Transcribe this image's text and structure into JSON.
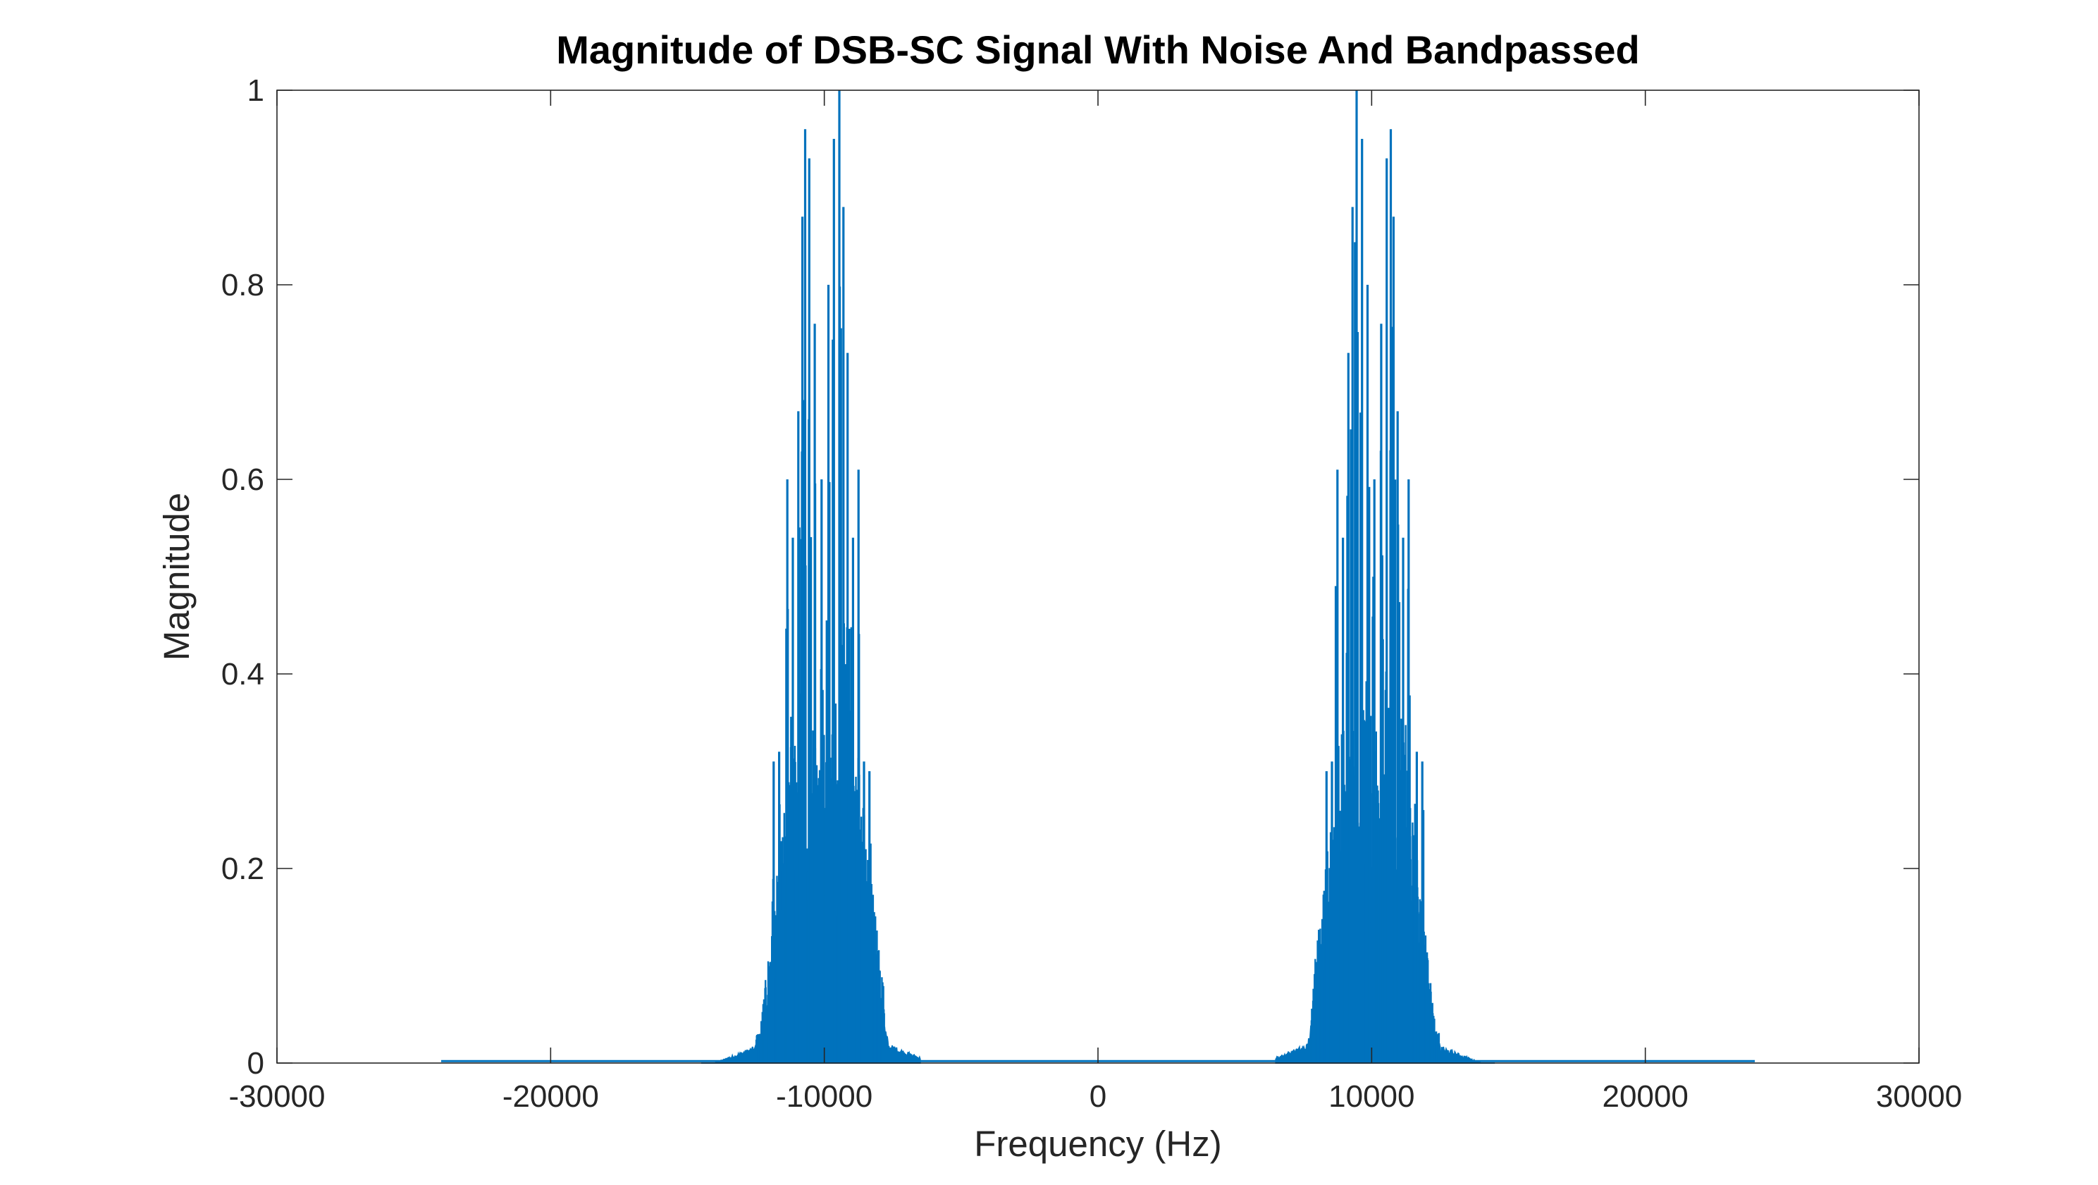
{
  "chart_data": {
    "type": "line",
    "title": "Magnitude of DSB-SC Signal With Noise And Bandpassed",
    "xlabel": "Frequency (Hz)",
    "ylabel": "Magnitude",
    "xlim": [
      -30000,
      30000
    ],
    "ylim": [
      0,
      1
    ],
    "xticks": [
      -30000,
      -20000,
      -10000,
      0,
      10000,
      20000,
      30000
    ],
    "yticks": [
      0,
      0.2,
      0.4,
      0.6,
      0.8,
      1
    ],
    "xtick_labels": [
      "-30000",
      "-20000",
      "-10000",
      "0",
      "10000",
      "20000",
      "30000"
    ],
    "ytick_labels": [
      "0",
      "0.2",
      "0.4",
      "0.6",
      "0.8",
      "1"
    ],
    "grid": false,
    "box": true,
    "series_color": "#0072BD",
    "series": [
      {
        "x_range": [
          -24000,
          24000
        ],
        "sidebands": [
          {
            "center": -10000,
            "band_edges": [
              -14500,
              -6500
            ],
            "dense_band": [
              -12500,
              -7800
            ],
            "peaks": [
              {
                "x": -11850,
                "y": 0.31
              },
              {
                "x": -11650,
                "y": 0.32
              },
              {
                "x": -11350,
                "y": 0.6
              },
              {
                "x": -11150,
                "y": 0.54
              },
              {
                "x": -10950,
                "y": 0.67
              },
              {
                "x": -10800,
                "y": 0.87
              },
              {
                "x": -10700,
                "y": 0.96
              },
              {
                "x": -10550,
                "y": 0.93
              },
              {
                "x": -10350,
                "y": 0.76
              },
              {
                "x": -10100,
                "y": 0.6
              },
              {
                "x": -9850,
                "y": 0.8
              },
              {
                "x": -9650,
                "y": 0.95
              },
              {
                "x": -9450,
                "y": 1.0
              },
              {
                "x": -9300,
                "y": 0.88
              },
              {
                "x": -9150,
                "y": 0.73
              },
              {
                "x": -8950,
                "y": 0.54
              },
              {
                "x": -8750,
                "y": 0.61
              },
              {
                "x": -8550,
                "y": 0.31
              },
              {
                "x": -8350,
                "y": 0.3
              }
            ]
          },
          {
            "center": 10000,
            "band_edges": [
              6500,
              14500
            ],
            "dense_band": [
              7800,
              12500
            ],
            "peaks": [
              {
                "x": 8350,
                "y": 0.3
              },
              {
                "x": 8550,
                "y": 0.31
              },
              {
                "x": 8750,
                "y": 0.61
              },
              {
                "x": 8950,
                "y": 0.54
              },
              {
                "x": 9150,
                "y": 0.73
              },
              {
                "x": 9300,
                "y": 0.88
              },
              {
                "x": 9450,
                "y": 1.0
              },
              {
                "x": 9650,
                "y": 0.95
              },
              {
                "x": 9850,
                "y": 0.8
              },
              {
                "x": 10100,
                "y": 0.6
              },
              {
                "x": 10350,
                "y": 0.76
              },
              {
                "x": 10550,
                "y": 0.93
              },
              {
                "x": 10700,
                "y": 0.96
              },
              {
                "x": 10800,
                "y": 0.87
              },
              {
                "x": 10950,
                "y": 0.67
              },
              {
                "x": 11150,
                "y": 0.54
              },
              {
                "x": 11350,
                "y": 0.6
              },
              {
                "x": 11650,
                "y": 0.32
              },
              {
                "x": 11850,
                "y": 0.31
              }
            ]
          }
        ]
      }
    ]
  }
}
